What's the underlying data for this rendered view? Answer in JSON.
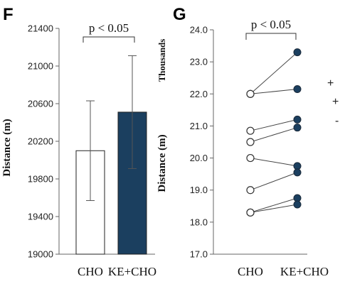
{
  "colors": {
    "ke_fill": "#1b3f5f",
    "cho_fill": "#ffffff",
    "axis": "#666666",
    "line": "#444444"
  },
  "chart_data": [
    {
      "panel": "F",
      "type": "bar",
      "categories": [
        "CHO",
        "KE+CHO"
      ],
      "values": [
        20100,
        20510
      ],
      "errors": [
        530,
        600
      ],
      "ylabel": "Distance (m)",
      "ylim": [
        19000,
        21400
      ],
      "yticks": [
        19000,
        19400,
        19800,
        20200,
        20600,
        21000,
        21400
      ],
      "ytick_labels": [
        "19000",
        "19400",
        "19800",
        "20200",
        "20600",
        "21000",
        "21400"
      ],
      "significance": "p < 0.05",
      "grid": false
    },
    {
      "panel": "G",
      "type": "scatter",
      "categories": [
        "CHO",
        "KE+CHO"
      ],
      "pairs": [
        [
          22.0,
          23.3
        ],
        [
          22.0,
          22.15
        ],
        [
          20.85,
          21.2
        ],
        [
          20.5,
          20.95
        ],
        [
          20.0,
          19.75
        ],
        [
          19.0,
          19.55
        ],
        [
          18.3,
          18.75
        ],
        [
          18.3,
          18.55
        ]
      ],
      "ylabel": "Distance (m)",
      "yunit_label": "Thousands",
      "ylim": [
        17.0,
        24.0
      ],
      "yticks": [
        17.0,
        18.0,
        19.0,
        20.0,
        21.0,
        22.0,
        23.0,
        24.0
      ],
      "ytick_labels": [
        "17.0",
        "18.0",
        "19.0",
        "20.0",
        "21.0",
        "22.0",
        "23.0",
        "24.0"
      ],
      "significance": "p < 0.05",
      "grid": false
    }
  ],
  "edge_marks": [
    "+",
    "+",
    "-"
  ]
}
